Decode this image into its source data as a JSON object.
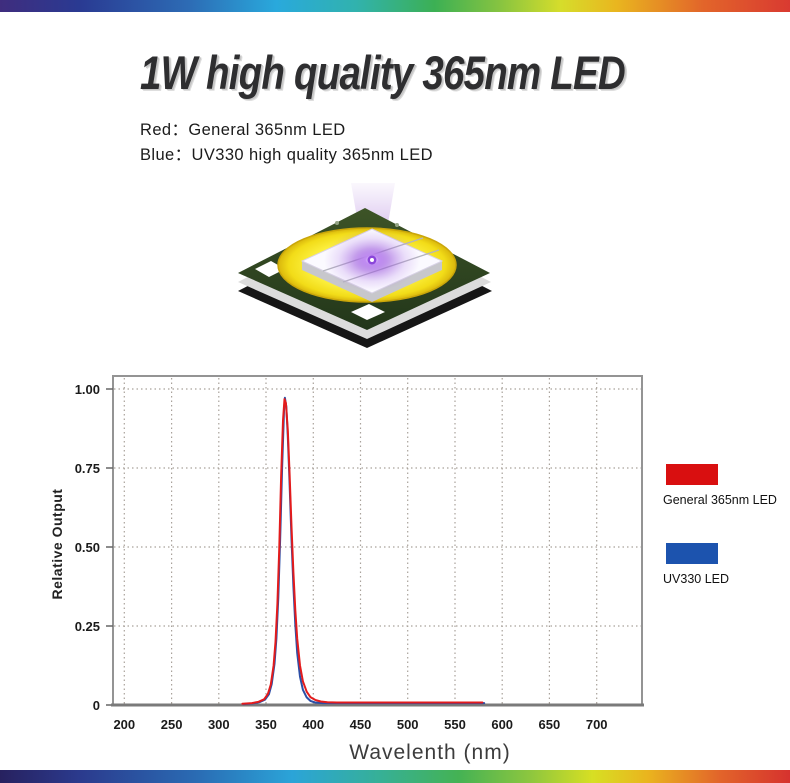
{
  "header": {
    "title": "1W high quality 365nm LED"
  },
  "subtitle": {
    "line1": "Red：General 365nm LED",
    "line2": "Blue：UV330 high quality 365nm LED"
  },
  "chart_data": {
    "type": "line",
    "xlabel": "Wavelenth (nm)",
    "ylabel": "Relative Output",
    "xlim": [
      188,
      748
    ],
    "ylim": [
      0,
      1.041
    ],
    "grid": true,
    "grid_color": "#a9a29b",
    "legend_position": "right-outside",
    "xticks": [
      200,
      250,
      300,
      350,
      400,
      450,
      500,
      550,
      600,
      650,
      700
    ],
    "yticks": [
      {
        "v": 1.0,
        "label": "1.00"
      },
      {
        "v": 0.75,
        "label": "0.75"
      },
      {
        "v": 0.5,
        "label": "0.50"
      },
      {
        "v": 0.25,
        "label": "0.25"
      },
      {
        "v": 0,
        "label": "0"
      }
    ],
    "series": [
      {
        "name": "UV330 LED",
        "color": "#2b4ea6",
        "points": [
          [
            326,
            0.003
          ],
          [
            336,
            0.005
          ],
          [
            343,
            0.009
          ],
          [
            349,
            0.017
          ],
          [
            353,
            0.034
          ],
          [
            356,
            0.066
          ],
          [
            359,
            0.13
          ],
          [
            361,
            0.21
          ],
          [
            363,
            0.34
          ],
          [
            365,
            0.53
          ],
          [
            367,
            0.75
          ],
          [
            369,
            0.93
          ],
          [
            370,
            0.972
          ],
          [
            371.5,
            0.945
          ],
          [
            373,
            0.85
          ],
          [
            375,
            0.7
          ],
          [
            377,
            0.525
          ],
          [
            379,
            0.375
          ],
          [
            381,
            0.255
          ],
          [
            383,
            0.165
          ],
          [
            386,
            0.09
          ],
          [
            389,
            0.048
          ],
          [
            393,
            0.024
          ],
          [
            397,
            0.013
          ],
          [
            402,
            0.008
          ],
          [
            410,
            0.006
          ],
          [
            425,
            0.006
          ],
          [
            460,
            0.006
          ],
          [
            500,
            0.006
          ],
          [
            545,
            0.006
          ],
          [
            581,
            0.006
          ]
        ]
      },
      {
        "name": "General 365nm LED",
        "color": "#e31b1c",
        "points": [
          [
            325,
            0.004
          ],
          [
            335,
            0.006
          ],
          [
            342,
            0.01
          ],
          [
            348,
            0.018
          ],
          [
            352,
            0.035
          ],
          [
            355,
            0.065
          ],
          [
            358,
            0.125
          ],
          [
            360,
            0.2
          ],
          [
            362,
            0.32
          ],
          [
            364,
            0.5
          ],
          [
            366,
            0.72
          ],
          [
            368,
            0.9
          ],
          [
            369.5,
            0.968
          ],
          [
            371,
            0.955
          ],
          [
            373,
            0.87
          ],
          [
            375,
            0.73
          ],
          [
            377,
            0.565
          ],
          [
            379,
            0.42
          ],
          [
            381,
            0.3
          ],
          [
            383,
            0.21
          ],
          [
            386,
            0.125
          ],
          [
            389,
            0.075
          ],
          [
            393,
            0.042
          ],
          [
            397,
            0.025
          ],
          [
            402,
            0.016
          ],
          [
            408,
            0.011
          ],
          [
            415,
            0.009
          ],
          [
            425,
            0.008
          ],
          [
            445,
            0.008
          ],
          [
            480,
            0.008
          ],
          [
            520,
            0.008
          ],
          [
            560,
            0.008
          ],
          [
            579,
            0.008
          ]
        ]
      }
    ]
  },
  "legend": {
    "items": [
      {
        "label": "General 365nm LED",
        "color": "#d90f10"
      },
      {
        "label": "UV330 LED",
        "color": "#1c53ae"
      }
    ]
  }
}
